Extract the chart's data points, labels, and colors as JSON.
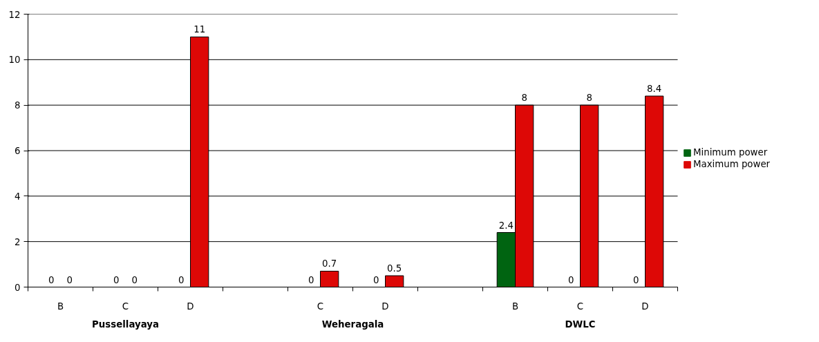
{
  "chart_data": {
    "type": "bar",
    "categories": [
      "B",
      "C",
      "D",
      null,
      "C",
      "D",
      null,
      "B",
      "C",
      "D"
    ],
    "series": [
      {
        "name": "Minimum power",
        "color": "#006411",
        "values": [
          0,
          0,
          0,
          null,
          0,
          0,
          null,
          2.4,
          0,
          0
        ]
      },
      {
        "name": "Maximum power",
        "color": "#dd0806",
        "values": [
          0,
          0,
          11,
          null,
          0.7,
          0.5,
          null,
          8,
          8,
          8.4
        ]
      }
    ],
    "annotations": [
      "Pussellayaya",
      "Weheragala",
      "DWLC"
    ],
    "ylim": [
      0,
      12
    ],
    "yticks": [
      0,
      2,
      4,
      6,
      8,
      10,
      12
    ],
    "grid": "y",
    "legend": "right",
    "data_labels": true
  }
}
